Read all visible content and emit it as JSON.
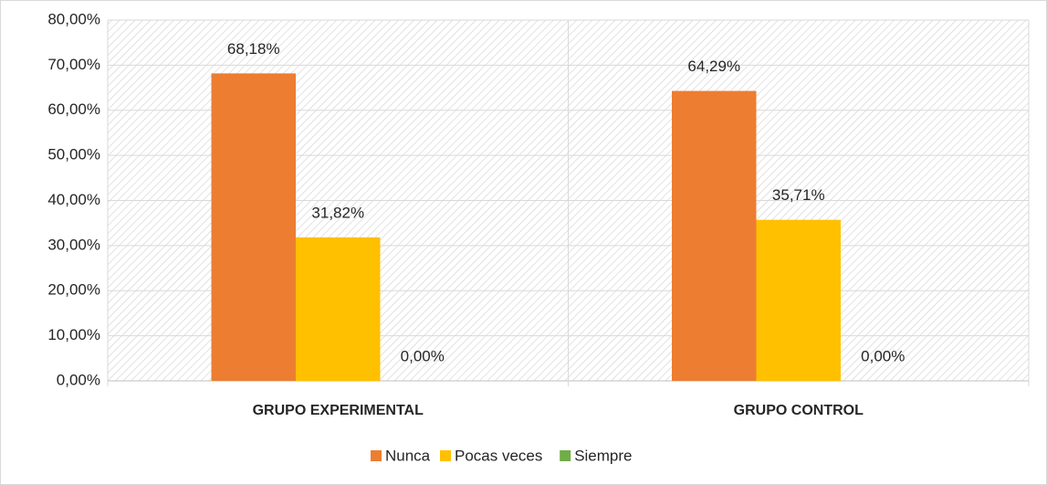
{
  "chart_data": {
    "type": "bar",
    "categories": [
      "GRUPO EXPERIMENTAL",
      "GRUPO CONTROL"
    ],
    "series": [
      {
        "name": "Nunca",
        "color": "#ED7D31",
        "values": [
          68.18,
          64.29
        ],
        "value_labels": [
          "68,18%",
          "64,29%"
        ]
      },
      {
        "name": "Pocas veces",
        "color": "#FFC000",
        "values": [
          31.82,
          35.71
        ],
        "value_labels": [
          "31,82%",
          "35,71%"
        ]
      },
      {
        "name": "Siempre",
        "color": "#70AD47",
        "values": [
          0,
          0
        ],
        "value_labels": [
          "0,00%",
          "0,00%"
        ]
      }
    ],
    "ylim": [
      0,
      80
    ],
    "yticks": [
      {
        "value": 0,
        "label": "0,00%"
      },
      {
        "value": 10,
        "label": "10,00%"
      },
      {
        "value": 20,
        "label": "20,00%"
      },
      {
        "value": 30,
        "label": "30,00%"
      },
      {
        "value": 40,
        "label": "40,00%"
      },
      {
        "value": 50,
        "label": "50,00%"
      },
      {
        "value": 60,
        "label": "60,00%"
      },
      {
        "value": 70,
        "label": "70,00%"
      },
      {
        "value": 80,
        "label": "80,00%"
      }
    ],
    "grid": true,
    "legend": "bottom"
  }
}
